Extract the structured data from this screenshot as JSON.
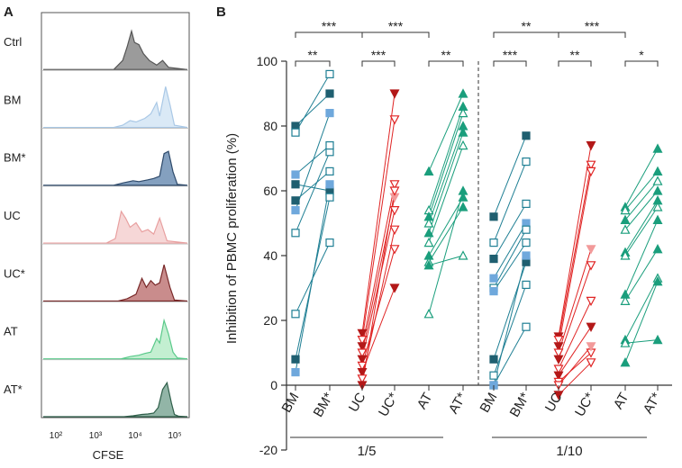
{
  "chart_data": [
    {
      "type": "histogram",
      "panel_label": "A",
      "xlabel": "CFSE",
      "x_ticks": [
        "10²",
        "10³",
        "10⁴",
        "10⁵"
      ],
      "rows": [
        {
          "label": "Ctrl",
          "color": "#555555",
          "fill": "#8a8a8a"
        },
        {
          "label": "BM",
          "color": "#a9c8e6",
          "fill": "#d3e5f5"
        },
        {
          "label": "BM*",
          "color": "#2e4a6b",
          "fill": "#6f8fb4"
        },
        {
          "label": "UC",
          "color": "#e8a0a0",
          "fill": "#f5d0d0"
        },
        {
          "label": "UC*",
          "color": "#7a2a2a",
          "fill": "#c07878"
        },
        {
          "label": "AT",
          "color": "#5ac98a",
          "fill": "#b8ecc9"
        },
        {
          "label": "AT*",
          "color": "#2f5f4a",
          "fill": "#7fa898"
        }
      ]
    },
    {
      "type": "scatter",
      "panel_label": "B",
      "ylabel": "Inhibition of PBMC proliferation (%)",
      "ylim": [
        -20,
        100
      ],
      "y_ticks": [
        "-20",
        "0",
        "20",
        "40",
        "60",
        "80",
        "100"
      ],
      "categories": [
        "BM",
        "BM*",
        "UC",
        "UC*",
        "AT",
        "AT*",
        "BM",
        "BM*",
        "UC",
        "UC*",
        "AT",
        "AT*"
      ],
      "groups": [
        "1/5",
        "1/10"
      ],
      "colors": {
        "BM": "#1f7f94",
        "UC": "#e02424",
        "AT": "#1a9e7c",
        "BM_fill": "#6fa8dc",
        "UC_fill": "#f29a9a"
      },
      "significance": [
        {
          "label": "***",
          "from": 0,
          "to": 2,
          "level": 2
        },
        {
          "label": "***",
          "from": 2,
          "to": 4,
          "level": 2
        },
        {
          "label": "**",
          "from": 0,
          "to": 1,
          "level": 1
        },
        {
          "label": "***",
          "from": 2,
          "to": 3,
          "level": 1
        },
        {
          "label": "**",
          "from": 4,
          "to": 5,
          "level": 1
        },
        {
          "label": "**",
          "from": 6,
          "to": 8,
          "level": 2
        },
        {
          "label": "***",
          "from": 8,
          "to": 10,
          "level": 2
        },
        {
          "label": "***",
          "from": 6,
          "to": 7,
          "level": 1
        },
        {
          "label": "**",
          "from": 8,
          "to": 9,
          "level": 1
        },
        {
          "label": "*",
          "from": 10,
          "to": 11,
          "level": 1
        }
      ],
      "pairs": [
        {
          "type": "BM",
          "left": 0,
          "right": 1,
          "values": [
            [
              80,
              90
            ],
            [
              78,
              96
            ],
            [
              57,
              66
            ],
            [
              54,
              84
            ],
            [
              47,
              72
            ],
            [
              65,
              74
            ],
            [
              62,
              60
            ],
            [
              22,
              44
            ],
            [
              8,
              58
            ],
            [
              4,
              62
            ]
          ]
        },
        {
          "type": "UC",
          "left": 2,
          "right": 3,
          "values": [
            [
              16,
              90
            ],
            [
              14,
              82
            ],
            [
              12,
              62
            ],
            [
              10,
              58
            ],
            [
              8,
              54
            ],
            [
              6,
              42
            ],
            [
              4,
              30
            ],
            [
              2,
              48
            ],
            [
              0,
              60
            ]
          ]
        },
        {
          "type": "AT",
          "left": 4,
          "right": 5,
          "values": [
            [
              66,
              90
            ],
            [
              54,
              86
            ],
            [
              52,
              84
            ],
            [
              50,
              80
            ],
            [
              47,
              78
            ],
            [
              44,
              74
            ],
            [
              40,
              58
            ],
            [
              38,
              55
            ],
            [
              37,
              40
            ],
            [
              22,
              60
            ]
          ]
        },
        {
          "type": "BM",
          "left": 6,
          "right": 7,
          "values": [
            [
              52,
              77
            ],
            [
              44,
              69
            ],
            [
              39,
              56
            ],
            [
              33,
              50
            ],
            [
              30,
              48
            ],
            [
              29,
              44
            ],
            [
              8,
              38
            ],
            [
              3,
              31
            ],
            [
              0,
              18
            ],
            [
              0,
              40
            ]
          ]
        },
        {
          "type": "UC",
          "left": 8,
          "right": 9,
          "values": [
            [
              15,
              74
            ],
            [
              14,
              68
            ],
            [
              12,
              66
            ],
            [
              10,
              42
            ],
            [
              8,
              37
            ],
            [
              5,
              26
            ],
            [
              3,
              18
            ],
            [
              1,
              10
            ],
            [
              -3,
              7
            ],
            [
              0,
              12
            ]
          ]
        },
        {
          "type": "AT",
          "left": 10,
          "right": 11,
          "values": [
            [
              55,
              73
            ],
            [
              54,
              66
            ],
            [
              51,
              63
            ],
            [
              48,
              60
            ],
            [
              41,
              57
            ],
            [
              40,
              55
            ],
            [
              28,
              51
            ],
            [
              26,
              42
            ],
            [
              14,
              33
            ],
            [
              13,
              14
            ],
            [
              7,
              32
            ]
          ]
        }
      ]
    }
  ]
}
